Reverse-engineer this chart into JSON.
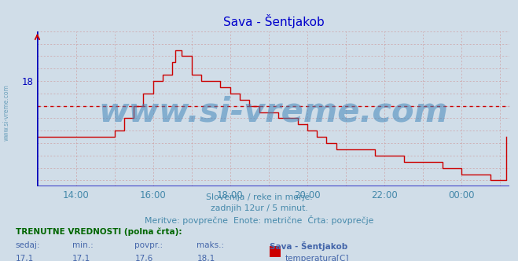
{
  "title": "Sava - Šentjakob",
  "bg_color": "#d0dde8",
  "line_color": "#cc0000",
  "line_width": 1.0,
  "avg_value": 17.6,
  "y_min": 16.3,
  "y_max": 18.8,
  "title_color": "#0000cc",
  "title_fontsize": 11,
  "watermark_text": "www.si-vreme.com",
  "watermark_color": "#4488bb",
  "watermark_alpha": 0.55,
  "watermark_fontsize": 30,
  "sub_text1": "Slovenija / reke in morje.",
  "sub_text2": "zadnjih 12ur / 5 minut.",
  "sub_text3": "Meritve: povprečne  Enote: metrične  Črta: povprečje",
  "sub_text_color": "#4488aa",
  "bottom_header": "TRENUTNE VREDNOSTI (polna črta):",
  "bottom_color_green": "#006600",
  "bottom_color_blue": "#4466aa",
  "legend_rect_color": "#cc0000",
  "x_times": [
    13.0,
    13.25,
    13.5,
    13.75,
    14.0,
    14.25,
    14.5,
    14.75,
    15.0,
    15.25,
    15.5,
    15.75,
    16.0,
    16.25,
    16.5,
    16.583,
    16.667,
    16.75,
    17.0,
    17.25,
    17.5,
    17.75,
    18.0,
    18.25,
    18.5,
    18.583,
    18.75,
    19.0,
    19.25,
    19.5,
    19.583,
    19.75,
    20.0,
    20.25,
    20.5,
    20.75,
    21.0,
    21.25,
    21.5,
    21.75,
    22.0,
    22.25,
    22.5,
    22.75,
    23.0,
    23.25,
    23.5,
    23.75,
    24.0,
    24.25,
    24.5,
    24.75,
    25.0,
    25.15
  ],
  "y_values": [
    17.1,
    17.1,
    17.1,
    17.1,
    17.1,
    17.1,
    17.1,
    17.1,
    17.2,
    17.4,
    17.6,
    17.8,
    18.0,
    18.1,
    18.3,
    18.5,
    18.5,
    18.4,
    18.1,
    18.0,
    18.0,
    17.9,
    17.8,
    17.7,
    17.6,
    17.6,
    17.5,
    17.5,
    17.4,
    17.4,
    17.4,
    17.3,
    17.2,
    17.1,
    17.0,
    16.9,
    16.9,
    16.9,
    16.9,
    16.8,
    16.8,
    16.8,
    16.7,
    16.7,
    16.7,
    16.7,
    16.6,
    16.6,
    16.5,
    16.5,
    16.5,
    16.4,
    16.4,
    17.1
  ],
  "xtick_positions": [
    14,
    16,
    18,
    20,
    22,
    24
  ],
  "xtick_labels": [
    "14:00",
    "16:00",
    "18:00",
    "20:00",
    "22:00",
    "00:00"
  ],
  "x_min": 13.0,
  "x_max": 25.25,
  "grid_color_v": "#cc8888",
  "grid_color_h": "#cc8888",
  "axis_color": "#0000bb"
}
